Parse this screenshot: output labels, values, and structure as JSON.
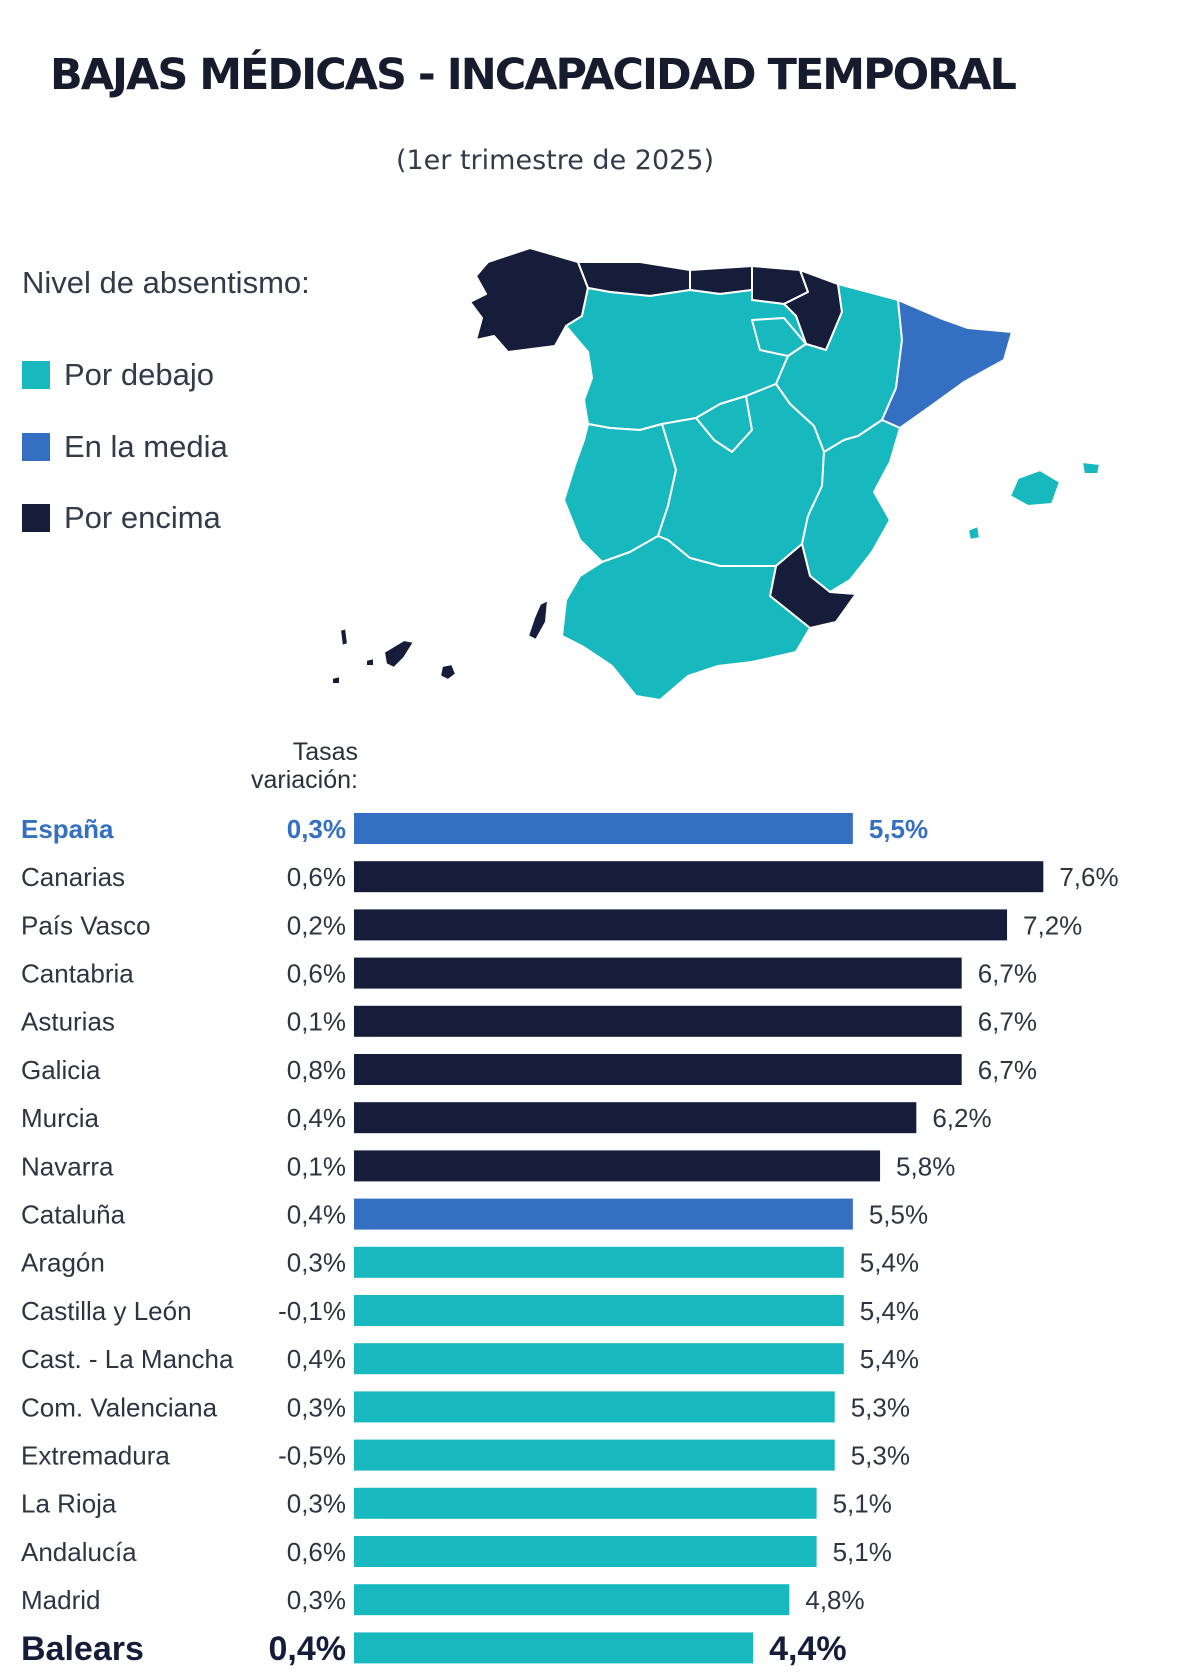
{
  "title": "BAJAS MÉDICAS - INCAPACIDAD TEMPORAL",
  "subtitle": "(1er trimestre de 2025)",
  "legend": {
    "title": "Nivel de absentismo:",
    "items": [
      {
        "label": "Por debajo",
        "color": "#17b8be"
      },
      {
        "label": "En la media",
        "color": "#356fc2"
      },
      {
        "label": "Por encima",
        "color": "#161d3b"
      }
    ]
  },
  "column_header": [
    "Tasas",
    "variación:"
  ],
  "chart_data": {
    "type": "bar",
    "orientation": "horizontal",
    "categories": [
      "España",
      "Canarias",
      "País Vasco",
      "Cantabria",
      "Asturias",
      "Galicia",
      "Murcia",
      "Navarra",
      "Cataluña",
      "Aragón",
      "Castilla y León",
      "Cast. - La Mancha",
      "Com. Valenciana",
      "Extremadura",
      "La Rioja",
      "Andalucía",
      "Madrid",
      "Balears"
    ],
    "values": [
      5.5,
      7.6,
      7.2,
      6.7,
      6.7,
      6.7,
      6.2,
      5.8,
      5.5,
      5.4,
      5.4,
      5.4,
      5.3,
      5.3,
      5.1,
      5.1,
      4.8,
      4.4
    ],
    "value_labels": [
      "5,5%",
      "7,6%",
      "7,2%",
      "6,7%",
      "6,7%",
      "6,7%",
      "6,2%",
      "5,8%",
      "5,5%",
      "5,4%",
      "5,4%",
      "5,4%",
      "5,3%",
      "5,3%",
      "5,1%",
      "5,1%",
      "4,8%",
      "4,4%"
    ],
    "variation_labels": [
      "0,3%",
      "0,6%",
      "0,2%",
      "0,6%",
      "0,1%",
      "0,8%",
      "0,4%",
      "0,1%",
      "0,4%",
      "0,3%",
      "-0,1%",
      "0,4%",
      "0,3%",
      "-0,5%",
      "0,3%",
      "0,6%",
      "0,3%",
      "0,4%"
    ],
    "variation_values": [
      0.3,
      0.6,
      0.2,
      0.6,
      0.1,
      0.8,
      0.4,
      0.1,
      0.4,
      0.3,
      -0.1,
      0.4,
      0.3,
      -0.5,
      0.3,
      0.6,
      0.3,
      0.4
    ],
    "levels": [
      "media",
      "encima",
      "encima",
      "encima",
      "encima",
      "encima",
      "encima",
      "encima",
      "media",
      "debajo",
      "debajo",
      "debajo",
      "debajo",
      "debajo",
      "debajo",
      "debajo",
      "debajo",
      "debajo"
    ],
    "level_colors": {
      "debajo": "#17b8be",
      "media": "#356fc2",
      "encima": "#161d3b"
    },
    "highlight": {
      "España": "national",
      "Balears": "featured"
    },
    "xlim": [
      0,
      7.6
    ],
    "grid": false
  }
}
